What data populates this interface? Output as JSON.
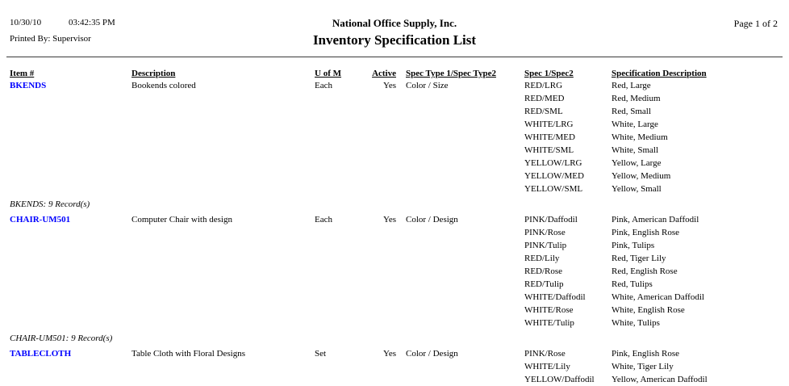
{
  "page": {
    "date": "10/30/10",
    "time": "03:42:35 PM",
    "printed_by": "Printed By: Supervisor",
    "company": "National Office Supply, Inc.",
    "report_title": "Inventory Specification List",
    "page_label": "Page 1 of 2"
  },
  "colors": {
    "item_link": "#0000ff",
    "text": "#000000",
    "background": "#ffffff"
  },
  "table": {
    "headers": [
      "Item #",
      "Description",
      "U of M",
      "Active",
      "Spec Type 1/Spec Type2",
      "Spec 1/Spec2",
      "Specification Description"
    ],
    "groups": [
      {
        "item": "BKENDS",
        "description": "Bookends colored",
        "uofm": "Each",
        "active": "Yes",
        "spec_type": "Color / Size",
        "specs": [
          {
            "code": "RED/LRG",
            "desc": "Red, Large"
          },
          {
            "code": "RED/MED",
            "desc": "Red, Medium"
          },
          {
            "code": "RED/SML",
            "desc": "Red, Small"
          },
          {
            "code": "WHITE/LRG",
            "desc": "White, Large"
          },
          {
            "code": "WHITE/MED",
            "desc": "White, Medium"
          },
          {
            "code": "WHITE/SML",
            "desc": "White, Small"
          },
          {
            "code": "YELLOW/LRG",
            "desc": "Yellow, Large"
          },
          {
            "code": "YELLOW/MED",
            "desc": "Yellow, Medium"
          },
          {
            "code": "YELLOW/SML",
            "desc": "Yellow, Small"
          }
        ],
        "summary": "BKENDS: 9 Record(s)"
      },
      {
        "item": "CHAIR-UM501",
        "description": "Computer Chair with design",
        "uofm": "Each",
        "active": "Yes",
        "spec_type": "Color / Design",
        "specs": [
          {
            "code": "PINK/Daffodil",
            "desc": "Pink, American Daffodil"
          },
          {
            "code": "PINK/Rose",
            "desc": "Pink, English Rose"
          },
          {
            "code": "PINK/Tulip",
            "desc": "Pink, Tulips"
          },
          {
            "code": "RED/Lily",
            "desc": "Red, Tiger Lily"
          },
          {
            "code": "RED/Rose",
            "desc": "Red, English Rose"
          },
          {
            "code": "RED/Tulip",
            "desc": "Red, Tulips"
          },
          {
            "code": "WHITE/Daffodil",
            "desc": "White, American Daffodil"
          },
          {
            "code": "WHITE/Rose",
            "desc": "White, English Rose"
          },
          {
            "code": "WHITE/Tulip",
            "desc": "White, Tulips"
          }
        ],
        "summary": "CHAIR-UM501: 9 Record(s)"
      },
      {
        "item": "TABLECLOTH",
        "description": "Table Cloth with Floral Designs",
        "uofm": "Set",
        "active": "Yes",
        "spec_type": "Color / Design",
        "specs": [
          {
            "code": "PINK/Rose",
            "desc": "Pink, English Rose"
          },
          {
            "code": "WHITE/Lily",
            "desc": "White, Tiger Lily"
          },
          {
            "code": "YELLOW/Daffodil",
            "desc": "Yellow, American Daffodil"
          }
        ],
        "summary": ""
      }
    ]
  }
}
